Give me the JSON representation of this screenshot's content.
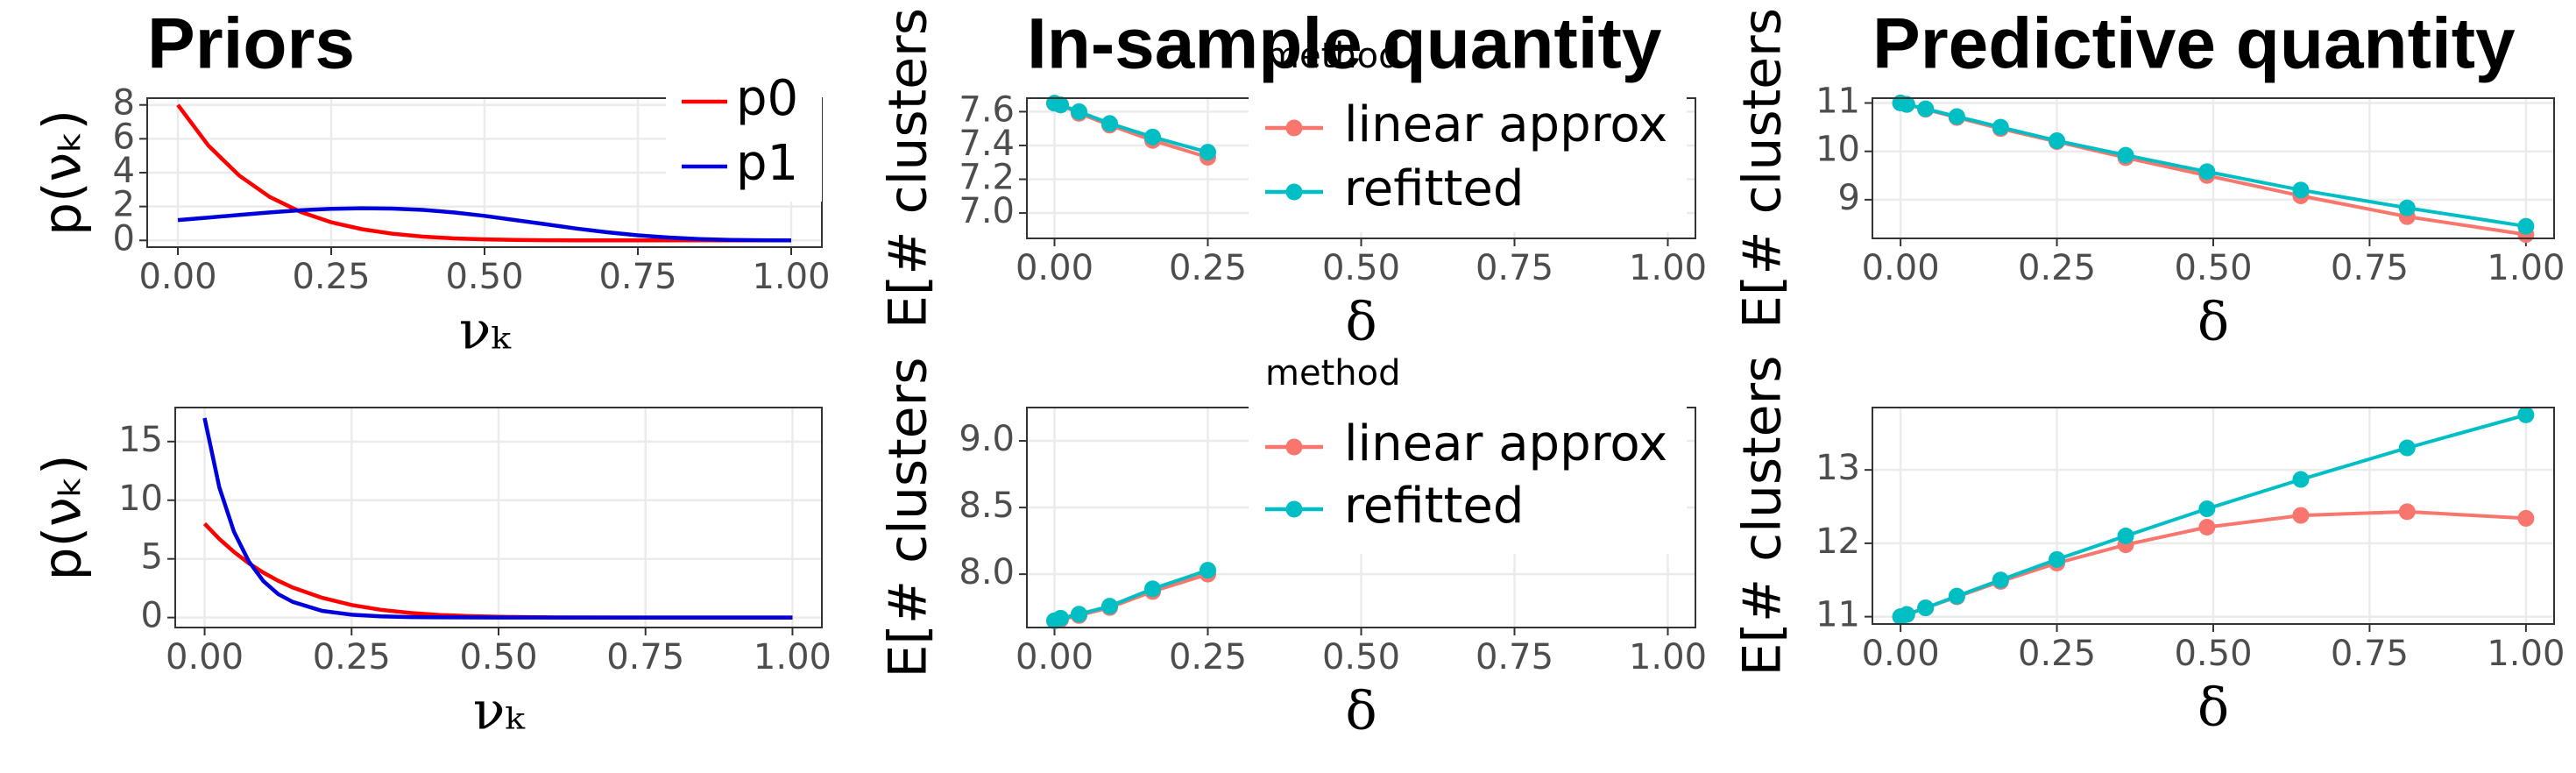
{
  "chart_data": [
    {
      "type": "line",
      "title": "Priors",
      "xlabel": "νₖ",
      "ylabel": "p(νₖ)",
      "grid": true,
      "markers": false,
      "x": [
        0,
        0.05,
        0.1,
        0.15,
        0.2,
        0.25,
        0.3,
        0.35,
        0.4,
        0.45,
        0.5,
        0.55,
        0.6,
        0.65,
        0.7,
        0.75,
        0.8,
        0.85,
        0.9,
        0.95,
        1
      ],
      "series": [
        {
          "name": "p0",
          "color": "#ff0000",
          "values": [
            8,
            5.59,
            3.83,
            2.56,
            1.68,
            1.07,
            0.66,
            0.39,
            0.22,
            0.12,
            0.06,
            0.03,
            0.01,
            0.005,
            0.002,
            0,
            0,
            0,
            0,
            0,
            0
          ]
        },
        {
          "name": "p1",
          "color": "#0000dd",
          "values": [
            1.2,
            1.35,
            1.5,
            1.65,
            1.78,
            1.86,
            1.9,
            1.88,
            1.8,
            1.65,
            1.45,
            1.2,
            0.95,
            0.7,
            0.48,
            0.3,
            0.17,
            0.08,
            0.03,
            0.01,
            0
          ]
        }
      ],
      "xlim": [
        -0.05,
        1.05
      ],
      "ylim": [
        -0.4,
        8.4
      ],
      "xticks": [
        {
          "value": 0,
          "label": "0.00"
        },
        {
          "value": 0.25,
          "label": "0.25"
        },
        {
          "value": 0.5,
          "label": "0.50"
        },
        {
          "value": 0.75,
          "label": "0.75"
        },
        {
          "value": 1,
          "label": "1.00"
        }
      ],
      "yticks": [
        0,
        2,
        4,
        6,
        8
      ]
    },
    {
      "type": "line",
      "xlabel": "νₖ",
      "ylabel": "p(νₖ)",
      "grid": true,
      "markers": false,
      "x": [
        0,
        0.025,
        0.05,
        0.075,
        0.1,
        0.125,
        0.15,
        0.2,
        0.25,
        0.3,
        0.35,
        0.4,
        0.45,
        0.5,
        0.6,
        0.7,
        0.8,
        0.9,
        1
      ],
      "series": [
        {
          "color": "#ff0000",
          "values": [
            8,
            6.7,
            5.59,
            4.63,
            3.83,
            3.14,
            2.56,
            1.68,
            1.07,
            0.66,
            0.39,
            0.22,
            0.12,
            0.06,
            0.01,
            0,
            0,
            0,
            0
          ]
        },
        {
          "color": "#0000dd",
          "values": [
            17,
            11.1,
            7.3,
            4.8,
            3.1,
            2,
            1.33,
            0.57,
            0.24,
            0.1,
            0.04,
            0.02,
            0.01,
            0,
            0,
            0,
            0,
            0,
            0
          ]
        }
      ],
      "xlim": [
        -0.05,
        1.05
      ],
      "ylim": [
        -0.85,
        17.9
      ],
      "xticks": [
        {
          "value": 0,
          "label": "0.00"
        },
        {
          "value": 0.25,
          "label": "0.25"
        },
        {
          "value": 0.5,
          "label": "0.50"
        },
        {
          "value": 0.75,
          "label": "0.75"
        },
        {
          "value": 1,
          "label": "1.00"
        }
      ],
      "yticks": [
        0,
        5,
        10,
        15
      ]
    },
    {
      "type": "line",
      "title": "In-sample quantity",
      "xlabel": "δ",
      "ylabel": "E[# clusters",
      "grid": true,
      "markers": true,
      "legend_title": "method",
      "x": [
        0,
        0.01,
        0.04,
        0.09,
        0.16,
        0.25
      ],
      "series": [
        {
          "name": "linear approx",
          "color": "#F8766D",
          "values": [
            7.65,
            7.64,
            7.59,
            7.52,
            7.43,
            7.33
          ]
        },
        {
          "name": "refitted",
          "color": "#00BFC4",
          "values": [
            7.65,
            7.64,
            7.6,
            7.53,
            7.45,
            7.36
          ]
        }
      ],
      "xlim": [
        -0.045,
        1.045
      ],
      "ylim": [
        6.85,
        7.68
      ],
      "xticks": [
        {
          "value": 0,
          "label": "0.00"
        },
        {
          "value": 0.25,
          "label": "0.25"
        },
        {
          "value": 0.5,
          "label": "0.50"
        },
        {
          "value": 0.75,
          "label": "0.75"
        },
        {
          "value": 1,
          "label": "1.00"
        }
      ],
      "yticks": [
        {
          "value": 7,
          "label": "7.0"
        },
        7.2,
        7.4,
        7.6
      ]
    },
    {
      "type": "line",
      "xlabel": "δ",
      "ylabel": "E[# clusters",
      "grid": true,
      "markers": true,
      "legend_title": "method",
      "x": [
        0,
        0.01,
        0.04,
        0.09,
        0.16,
        0.25
      ],
      "series": [
        {
          "name": "linear approx",
          "color": "#F8766D",
          "values": [
            7.65,
            7.66,
            7.69,
            7.75,
            7.87,
            8
          ]
        },
        {
          "name": "refitted",
          "color": "#00BFC4",
          "values": [
            7.65,
            7.67,
            7.7,
            7.76,
            7.89,
            8.03
          ]
        }
      ],
      "xlim": [
        -0.045,
        1.045
      ],
      "ylim": [
        7.6,
        9.25
      ],
      "xticks": [
        {
          "value": 0,
          "label": "0.00"
        },
        {
          "value": 0.25,
          "label": "0.25"
        },
        {
          "value": 0.5,
          "label": "0.50"
        },
        {
          "value": 0.75,
          "label": "0.75"
        },
        {
          "value": 1,
          "label": "1.00"
        }
      ],
      "yticks": [
        {
          "value": 8,
          "label": "8.0"
        },
        8.5,
        {
          "value": 9,
          "label": "9.0"
        }
      ]
    },
    {
      "type": "line",
      "title": "Predictive quantity",
      "xlabel": "δ",
      "ylabel": "E[# clusters",
      "grid": true,
      "markers": true,
      "x": [
        0,
        0.01,
        0.04,
        0.09,
        0.16,
        0.25,
        0.36,
        0.49,
        0.64,
        0.81,
        1
      ],
      "series": [
        {
          "color": "#F8766D",
          "values": [
            11,
            10.97,
            10.87,
            10.7,
            10.47,
            10.2,
            9.87,
            9.5,
            9.08,
            8.65,
            8.28
          ]
        },
        {
          "color": "#00BFC4",
          "values": [
            11,
            10.97,
            10.88,
            10.72,
            10.5,
            10.22,
            9.92,
            9.58,
            9.2,
            8.83,
            8.45
          ]
        }
      ],
      "xlim": [
        -0.045,
        1.045
      ],
      "ylim": [
        8.2,
        11.1
      ],
      "xticks": [
        {
          "value": 0,
          "label": "0.00"
        },
        {
          "value": 0.25,
          "label": "0.25"
        },
        {
          "value": 0.5,
          "label": "0.50"
        },
        {
          "value": 0.75,
          "label": "0.75"
        },
        {
          "value": 1,
          "label": "1.00"
        }
      ],
      "yticks": [
        9,
        10,
        11
      ]
    },
    {
      "type": "line",
      "xlabel": "δ",
      "ylabel": "E[# clusters",
      "grid": true,
      "markers": true,
      "x": [
        0,
        0.01,
        0.04,
        0.09,
        0.16,
        0.25,
        0.36,
        0.49,
        0.64,
        0.81,
        1
      ],
      "series": [
        {
          "color": "#F8766D",
          "values": [
            11,
            11.03,
            11.12,
            11.27,
            11.48,
            11.73,
            11.98,
            12.22,
            12.38,
            12.43,
            12.34
          ]
        },
        {
          "color": "#00BFC4",
          "values": [
            11,
            11.03,
            11.12,
            11.28,
            11.5,
            11.78,
            12.1,
            12.47,
            12.87,
            13.3,
            13.75
          ]
        }
      ],
      "xlim": [
        -0.045,
        1.045
      ],
      "ylim": [
        10.9,
        13.85
      ],
      "xticks": [
        {
          "value": 0,
          "label": "0.00"
        },
        {
          "value": 0.25,
          "label": "0.25"
        },
        {
          "value": 0.5,
          "label": "0.50"
        },
        {
          "value": 0.75,
          "label": "0.75"
        },
        {
          "value": 1,
          "label": "1.00"
        }
      ],
      "yticks": [
        11,
        12,
        13
      ]
    }
  ]
}
